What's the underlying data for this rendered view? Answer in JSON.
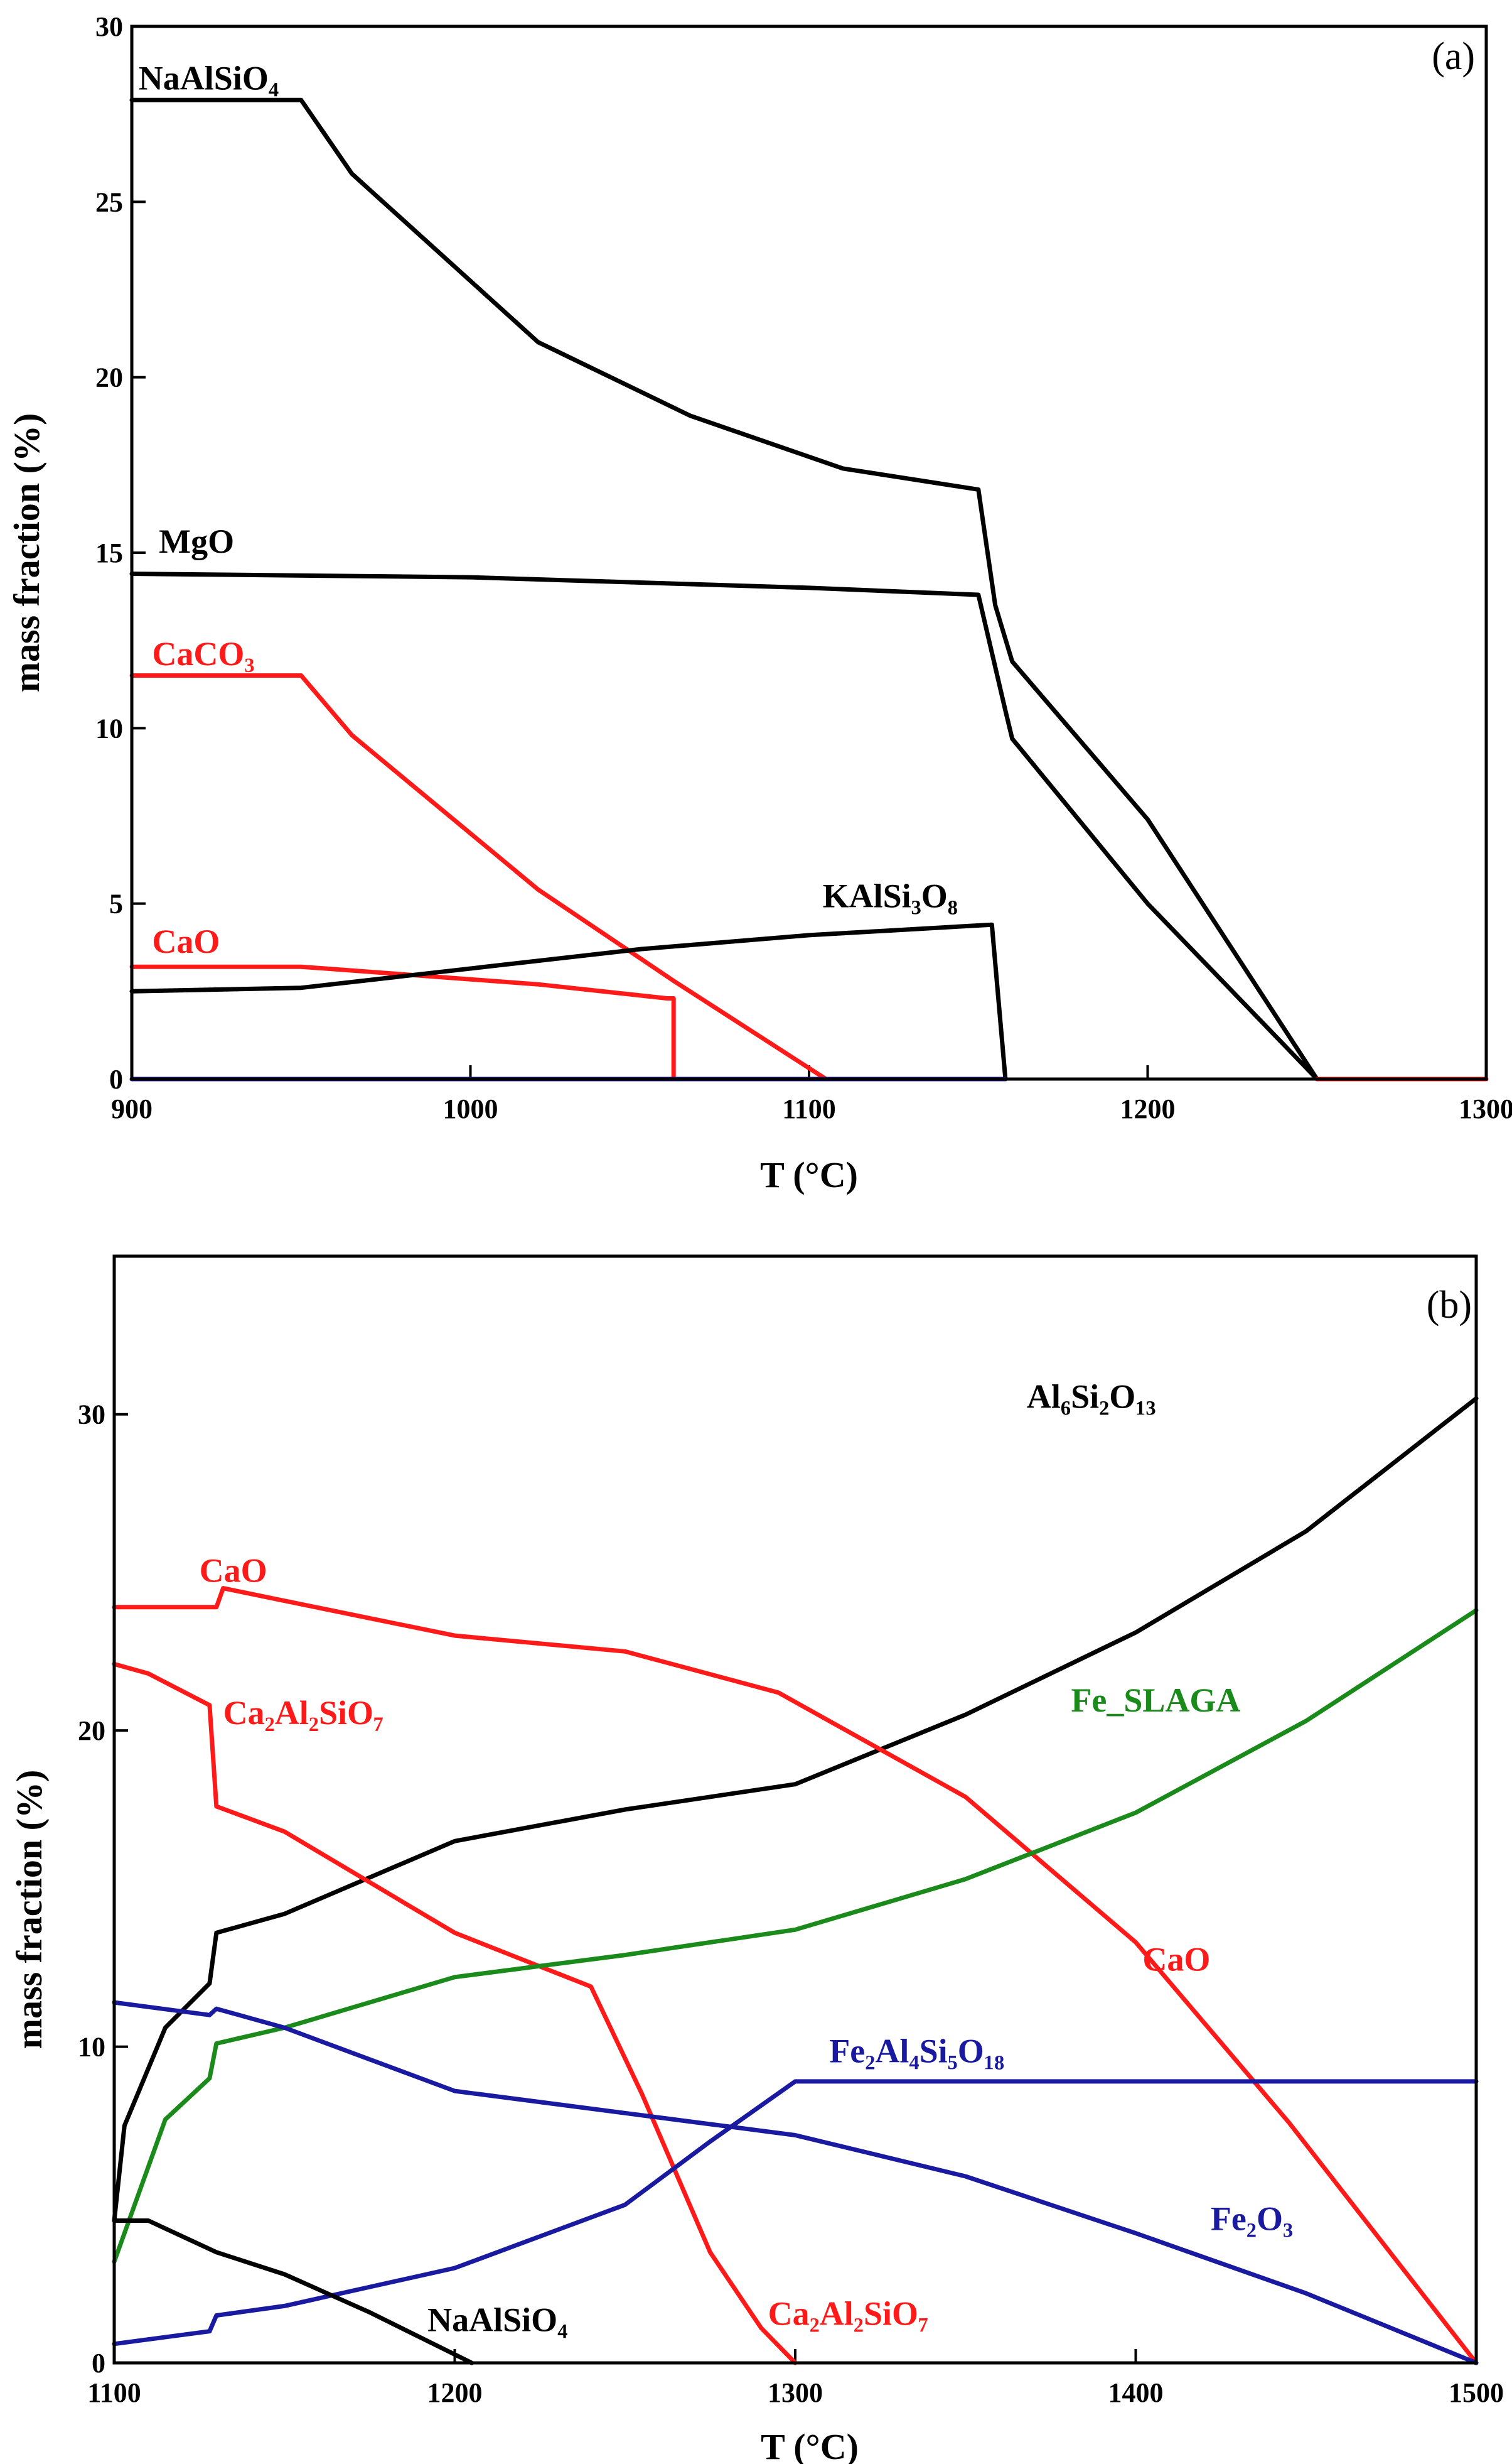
{
  "colors": {
    "black": "#000000",
    "red": "#ff1a1a",
    "blue": "#1a1aa0",
    "green": "#1a8a1a"
  },
  "chart_data": [
    {
      "type": "line",
      "panel_label": "(a)",
      "xlabel": "T (°C)",
      "ylabel": "mass fraction (%)",
      "xlim": [
        900,
        1300
      ],
      "ylim": [
        0,
        30
      ],
      "xticks": [
        "900",
        "1000",
        "1100",
        "1200",
        "1300"
      ],
      "yticks": [
        "0",
        "5",
        "10",
        "15",
        "20",
        "25",
        "30"
      ],
      "xtick_values": [
        900,
        1000,
        1100,
        1200,
        1300
      ],
      "ytick_values": [
        0,
        5,
        10,
        15,
        20,
        25,
        30
      ],
      "series": [
        {
          "name": "NaAlSiO₄",
          "color": "black",
          "x": [
            900,
            950,
            965,
            1020,
            1065,
            1110,
            1150,
            1155,
            1160,
            1200,
            1250
          ],
          "y": [
            27.9,
            27.9,
            25.8,
            21.0,
            18.9,
            17.4,
            16.8,
            13.5,
            11.9,
            7.4,
            0
          ],
          "label_at": [
            902,
            28.2
          ]
        },
        {
          "name": "MgO",
          "color": "black",
          "x": [
            900,
            1000,
            1100,
            1150,
            1158,
            1160,
            1200,
            1250
          ],
          "y": [
            14.4,
            14.3,
            14.0,
            13.8,
            10.5,
            9.7,
            5.0,
            0
          ],
          "label_at": [
            908,
            15.0
          ]
        },
        {
          "name": "CaCO₃",
          "color": "red",
          "x": [
            900,
            950,
            965,
            1020,
            1060,
            1105
          ],
          "y": [
            11.5,
            11.5,
            9.8,
            5.4,
            2.8,
            0
          ],
          "label_at": [
            906,
            11.8
          ]
        },
        {
          "name": "CaO",
          "color": "red",
          "x": [
            900,
            950,
            1020,
            1058,
            1060,
            1060
          ],
          "y": [
            3.2,
            3.2,
            2.7,
            2.3,
            2.3,
            0
          ],
          "label_at": [
            906,
            3.6
          ]
        },
        {
          "name": "KAlSi₃O₈",
          "color": "black",
          "x": [
            900,
            950,
            1050,
            1100,
            1154,
            1158
          ],
          "y": [
            2.5,
            2.6,
            3.7,
            4.1,
            4.4,
            0
          ],
          "label_at": [
            1104,
            4.9
          ]
        },
        {
          "name": "",
          "color": "red",
          "x": [
            1250,
            1300
          ],
          "y": [
            0,
            0
          ]
        },
        {
          "name": "",
          "color": "blue",
          "x": [
            900,
            1158
          ],
          "y": [
            0,
            0
          ]
        }
      ]
    },
    {
      "type": "line",
      "panel_label": "(b)",
      "xlabel": "T (°C)",
      "ylabel": "mass fraction (%)",
      "xlim": [
        1100,
        1500
      ],
      "ylim": [
        0,
        35
      ],
      "xticks": [
        "1100",
        "1200",
        "1300",
        "1400",
        "1500"
      ],
      "yticks": [
        "0",
        "10",
        "20",
        "30"
      ],
      "xtick_values": [
        1100,
        1200,
        1300,
        1400,
        1500
      ],
      "ytick_values": [
        0,
        10,
        20,
        30
      ],
      "series": [
        {
          "name": "Al₆Si₂O₁₃",
          "color": "black",
          "x": [
            1100,
            1103,
            1115,
            1128,
            1130,
            1150,
            1200,
            1250,
            1300,
            1350,
            1400,
            1450,
            1500
          ],
          "y": [
            4.5,
            7.5,
            10.6,
            12.0,
            13.6,
            14.2,
            16.5,
            17.5,
            18.3,
            20.5,
            23.1,
            26.3,
            30.5
          ],
          "label_at": [
            1368,
            30.2
          ]
        },
        {
          "name": "CaO",
          "color": "red",
          "x": [
            1100,
            1130,
            1132,
            1150,
            1200,
            1250,
            1295,
            1350,
            1400,
            1445,
            1500
          ],
          "y": [
            23.9,
            23.9,
            24.5,
            24.1,
            23.0,
            22.5,
            21.2,
            17.9,
            13.3,
            7.6,
            0
          ],
          "label_at": [
            1125,
            24.7
          ],
          "label2_at": [
            1402,
            12.4
          ]
        },
        {
          "name": "Ca₂Al₂SiO₇",
          "color": "red",
          "x": [
            1100,
            1110,
            1128,
            1130,
            1150,
            1200,
            1240,
            1255,
            1275,
            1290,
            1300
          ],
          "y": [
            22.1,
            21.8,
            20.8,
            17.6,
            16.8,
            13.6,
            11.9,
            8.5,
            3.5,
            1.1,
            0
          ],
          "label_at": [
            1132,
            20.2
          ],
          "label2_at": [
            1292,
            1.2
          ]
        },
        {
          "name": "Fe_SLAGA",
          "color": "green",
          "x": [
            1100,
            1115,
            1128,
            1130,
            1150,
            1200,
            1250,
            1300,
            1350,
            1400,
            1450,
            1500
          ],
          "y": [
            3.2,
            7.7,
            9.0,
            10.1,
            10.6,
            12.2,
            12.9,
            13.7,
            15.3,
            17.4,
            20.3,
            23.8
          ],
          "label_at": [
            1381,
            20.6
          ]
        },
        {
          "name": "Fe₂Al₄Si₅O₁₈",
          "color": "blue",
          "x": [
            1100,
            1128,
            1130,
            1150,
            1200,
            1250,
            1275,
            1300,
            1500
          ],
          "y": [
            0.6,
            1.0,
            1.5,
            1.8,
            3.0,
            5.0,
            7.0,
            8.9,
            8.9
          ],
          "label_at": [
            1310,
            9.5
          ]
        },
        {
          "name": "Fe₂O₃",
          "color": "blue",
          "x": [
            1100,
            1128,
            1130,
            1150,
            1200,
            1250,
            1300,
            1350,
            1400,
            1450,
            1500
          ],
          "y": [
            11.4,
            11.0,
            11.2,
            10.6,
            8.6,
            7.9,
            7.2,
            5.9,
            4.1,
            2.2,
            0
          ],
          "label_at": [
            1422,
            4.2
          ]
        },
        {
          "name": "NaAlSiO₄",
          "color": "black",
          "x": [
            1100,
            1110,
            1130,
            1150,
            1175,
            1205
          ],
          "y": [
            4.5,
            4.5,
            3.5,
            2.8,
            1.6,
            0
          ],
          "label_at": [
            1192,
            1.0
          ]
        }
      ]
    }
  ]
}
